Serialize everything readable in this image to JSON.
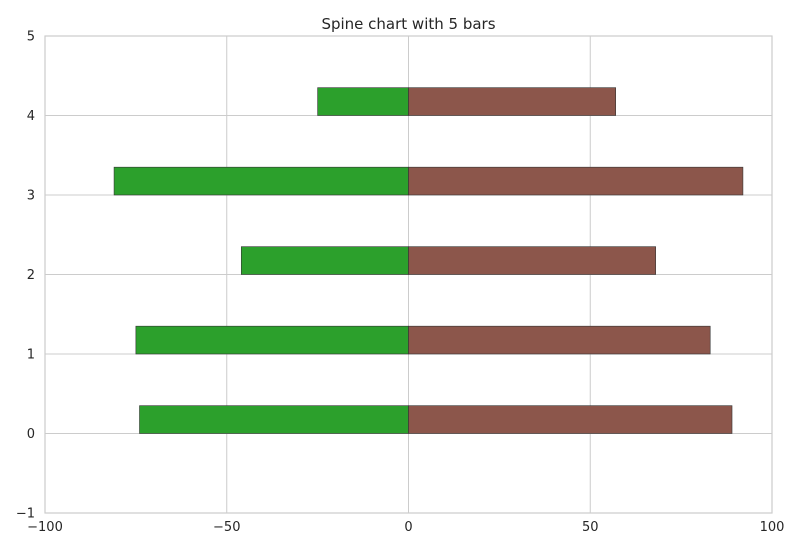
{
  "chart_data": {
    "type": "bar",
    "orientation": "horizontal",
    "title": "Spine chart with 5 bars",
    "xlabel": "",
    "ylabel": "",
    "xlim": [
      -100,
      100
    ],
    "ylim": [
      -1,
      5
    ],
    "xticks": [
      -100,
      -50,
      0,
      50,
      100
    ],
    "xtick_labels": [
      "−100",
      "−50",
      "0",
      "50",
      "100"
    ],
    "yticks": [
      -1,
      0,
      1,
      2,
      3,
      4,
      5
    ],
    "ytick_labels": [
      "−1",
      "0",
      "1",
      "2",
      "3",
      "4",
      "5"
    ],
    "grid": true,
    "categories": [
      0,
      1,
      2,
      3,
      4
    ],
    "series": [
      {
        "values": [
          -74,
          -75,
          -46,
          -81,
          -25
        ],
        "color": "#2ca02c"
      },
      {
        "values": [
          89,
          83,
          68,
          92,
          57
        ],
        "color": "#8c564b"
      }
    ]
  }
}
